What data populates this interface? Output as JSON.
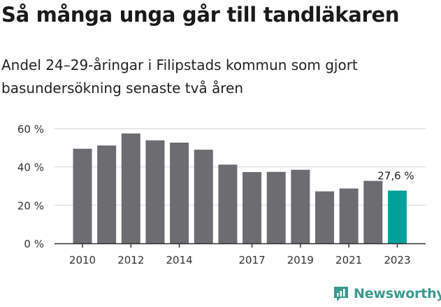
{
  "title": "Så många unga går till tandläkaren",
  "subtitle": "Andel 24–29-åringar i Filipstads kommun som gjort basundersökning senaste två åren",
  "brand": {
    "name": "Newsworthy",
    "icon": "newsworthy-logo-icon",
    "color": "#3a9a8c"
  },
  "colors": {
    "bar": "#6d6c71",
    "highlight": "#00a19a",
    "grid": "#d9d9d9",
    "axis": "#333333"
  },
  "chart_data": {
    "type": "bar",
    "title": "Så många unga går till tandläkaren",
    "subtitle": "Andel 24–29-åringar i Filipstads kommun som gjort basundersökning senaste två åren",
    "categories": [
      "2010",
      "2011",
      "2012",
      "2013",
      "2014",
      "2015",
      "2016",
      "2017",
      "2018",
      "2019",
      "2020",
      "2021",
      "2022",
      "2023"
    ],
    "values": [
      49.5,
      51.2,
      57.5,
      53.9,
      52.7,
      49.0,
      41.2,
      37.3,
      37.4,
      38.5,
      27.2,
      28.7,
      32.7,
      27.6
    ],
    "highlight_index": 13,
    "annotation": "27,6 %",
    "x_tick_labels": [
      "2010",
      "2012",
      "2014",
      "2017",
      "2019",
      "2021",
      "2023"
    ],
    "y_ticks": [
      0,
      20,
      40,
      60
    ],
    "y_tick_labels": [
      "0 %",
      "20 %",
      "40 %",
      "60 %"
    ],
    "ylim": [
      0,
      60
    ],
    "xlabel": "",
    "ylabel": "",
    "grid": true,
    "legend": "none"
  }
}
